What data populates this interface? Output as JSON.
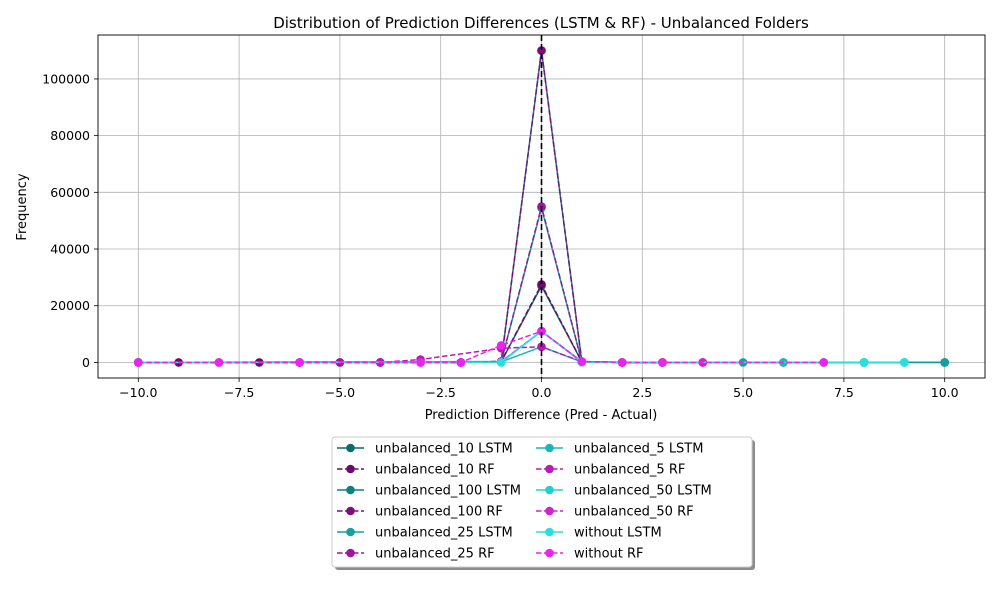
{
  "chart_data": {
    "type": "line",
    "title": "Distribution of Prediction Differences (LSTM & RF) - Unbalanced Folders",
    "xlabel": "Prediction Difference (Pred - Actual)",
    "ylabel": "Frequency",
    "xlim": [
      -11,
      11
    ],
    "ylim": [
      -5500,
      115500
    ],
    "xticks": [
      -10,
      -7.5,
      -5,
      -2.5,
      0,
      2.5,
      5,
      7.5,
      10
    ],
    "xtick_labels": [
      "−10.0",
      "−7.5",
      "−5.0",
      "−2.5",
      "0.0",
      "2.5",
      "5.0",
      "7.5",
      "10.0"
    ],
    "yticks": [
      0,
      20000,
      40000,
      60000,
      80000,
      100000
    ],
    "ytick_labels": [
      "0",
      "20000",
      "40000",
      "60000",
      "80000",
      "100000"
    ],
    "grid": true,
    "vline": {
      "x": 0,
      "style": "dashed",
      "color": "#000000"
    },
    "legend_position": "below-center",
    "legend_columns": 2,
    "series": [
      {
        "name": "unbalanced_10 LSTM",
        "style": "solid",
        "color": "#0a6b6b",
        "points": [
          [
            -10,
            0
          ],
          [
            -2,
            0
          ],
          [
            -1,
            200
          ],
          [
            0,
            27000
          ],
          [
            1,
            200
          ],
          [
            2,
            0
          ],
          [
            8,
            0
          ],
          [
            10,
            0
          ]
        ]
      },
      {
        "name": "unbalanced_10 RF",
        "style": "dashed",
        "color": "#6b0a6b",
        "points": [
          [
            -10,
            0
          ],
          [
            -9,
            0
          ],
          [
            -8,
            0
          ],
          [
            -7,
            0
          ],
          [
            -6,
            0
          ],
          [
            -5,
            0
          ],
          [
            -4,
            0
          ],
          [
            -3,
            0
          ],
          [
            -2,
            0
          ],
          [
            -1,
            300
          ],
          [
            0,
            27500
          ],
          [
            1,
            200
          ],
          [
            2,
            0
          ],
          [
            3,
            0
          ],
          [
            4,
            0
          ]
        ]
      },
      {
        "name": "unbalanced_100 LSTM",
        "style": "solid",
        "color": "#0d8080",
        "points": [
          [
            -10,
            0
          ],
          [
            -1,
            300
          ],
          [
            0,
            110000
          ],
          [
            1,
            300
          ],
          [
            2,
            0
          ],
          [
            6,
            0
          ],
          [
            8,
            0
          ],
          [
            10,
            0
          ]
        ]
      },
      {
        "name": "unbalanced_100 RF",
        "style": "dashed",
        "color": "#800d80",
        "points": [
          [
            -10,
            0
          ],
          [
            -6,
            0
          ],
          [
            -4,
            0
          ],
          [
            -2,
            0
          ],
          [
            -1,
            300
          ],
          [
            0,
            110000
          ],
          [
            1,
            300
          ],
          [
            2,
            0
          ],
          [
            3,
            0
          ]
        ]
      },
      {
        "name": "unbalanced_25 LSTM",
        "style": "solid",
        "color": "#14a0a0",
        "points": [
          [
            -10,
            0
          ],
          [
            -1,
            200
          ],
          [
            0,
            54500
          ],
          [
            1,
            200
          ],
          [
            2,
            0
          ],
          [
            5,
            0
          ],
          [
            10,
            0
          ]
        ]
      },
      {
        "name": "unbalanced_25 RF",
        "style": "dashed",
        "color": "#a014a0",
        "points": [
          [
            -10,
            0
          ],
          [
            -5,
            0
          ],
          [
            -3,
            0
          ],
          [
            -1,
            300
          ],
          [
            0,
            55000
          ],
          [
            1,
            200
          ],
          [
            2,
            0
          ],
          [
            3,
            0
          ]
        ]
      },
      {
        "name": "unbalanced_5 LSTM",
        "style": "solid",
        "color": "#1ab8b8",
        "points": [
          [
            -10,
            0
          ],
          [
            -1,
            200
          ],
          [
            0,
            5500
          ],
          [
            1,
            200
          ],
          [
            3,
            0
          ],
          [
            6,
            0
          ],
          [
            9,
            0
          ]
        ]
      },
      {
        "name": "unbalanced_5 RF",
        "style": "dashed",
        "color": "#b81ab8",
        "points": [
          [
            -10,
            0
          ],
          [
            -4,
            0
          ],
          [
            -3,
            1000
          ],
          [
            -1,
            5000
          ],
          [
            0,
            5500
          ],
          [
            1,
            300
          ],
          [
            2,
            0
          ],
          [
            7,
            0
          ]
        ]
      },
      {
        "name": "unbalanced_50 LSTM",
        "style": "solid",
        "color": "#20d0d0",
        "points": [
          [
            -10,
            0
          ],
          [
            -1,
            200
          ],
          [
            0,
            11000
          ],
          [
            1,
            200
          ],
          [
            2,
            0
          ],
          [
            7,
            0
          ],
          [
            8,
            0
          ],
          [
            9,
            0
          ]
        ]
      },
      {
        "name": "unbalanced_50 RF",
        "style": "dashed",
        "color": "#d020d0",
        "points": [
          [
            -10,
            0
          ],
          [
            -6,
            0
          ],
          [
            -2,
            0
          ],
          [
            -1,
            300
          ],
          [
            0,
            11000
          ],
          [
            1,
            200
          ],
          [
            2,
            0
          ],
          [
            4,
            0
          ]
        ]
      },
      {
        "name": "without LSTM",
        "style": "solid",
        "color": "#26e0e0",
        "points": [
          [
            -10,
            0
          ],
          [
            -1,
            0
          ],
          [
            0,
            11000
          ],
          [
            1,
            0
          ],
          [
            8,
            0
          ],
          [
            9,
            0
          ]
        ]
      },
      {
        "name": "without RF",
        "style": "dashed",
        "color": "#ee22ee",
        "points": [
          [
            -10,
            0
          ],
          [
            -8,
            0
          ],
          [
            -6,
            0
          ],
          [
            -3,
            0
          ],
          [
            -2,
            0
          ],
          [
            -1,
            6000
          ],
          [
            0,
            11000
          ],
          [
            1,
            300
          ],
          [
            2,
            0
          ],
          [
            3,
            0
          ],
          [
            7,
            0
          ]
        ]
      }
    ]
  }
}
